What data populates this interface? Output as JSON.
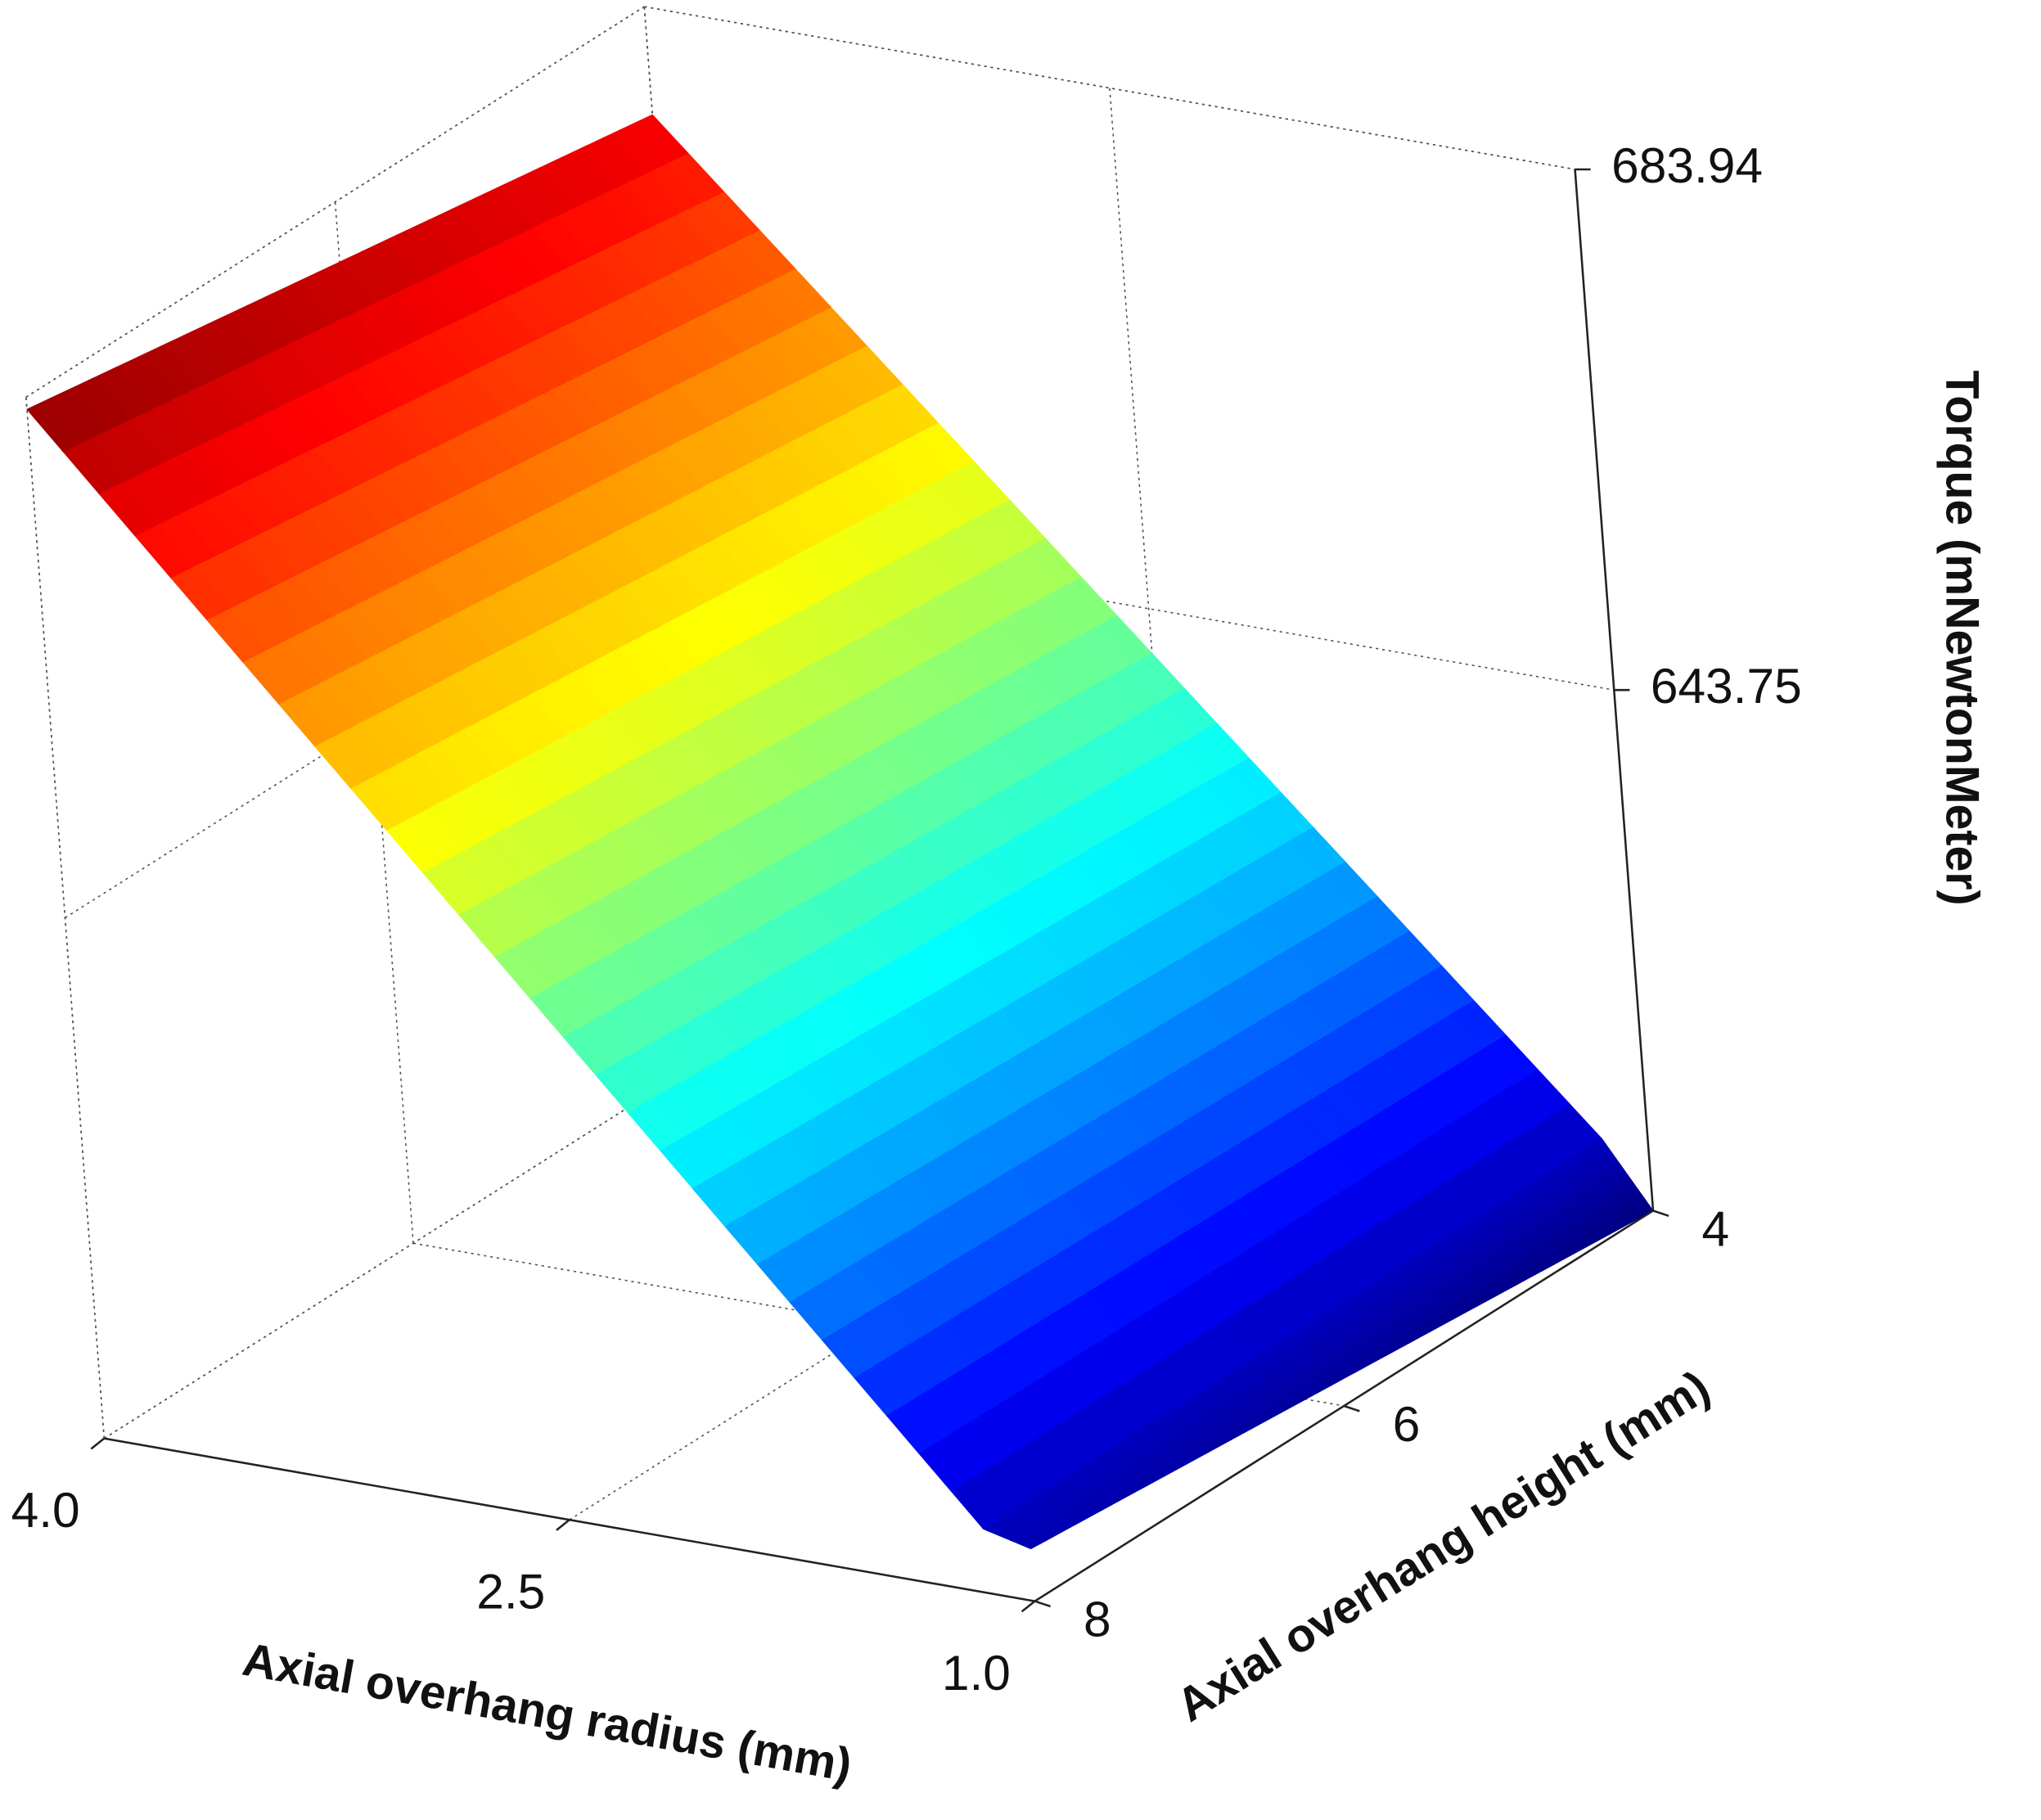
{
  "chart_data": {
    "type": "surface",
    "x_label": "Axial overhang radius (mm)",
    "y_label": "Axial overhang height (mm)",
    "z_label": "Torque (mNewtonMeter)",
    "x": [
      1.0,
      1.15,
      2.5,
      4.0
    ],
    "y": [
      4,
      6,
      8
    ],
    "values": [
      [
        603.56,
        608.5,
        640.3,
        675.6
      ],
      [
        605.6,
        608.5,
        642.0,
        679.3
      ],
      [
        607.6,
        608.5,
        643.8,
        683.0
      ]
    ],
    "xlim": [
      1.0,
      4.0
    ],
    "ylim": [
      4,
      8
    ],
    "zlim": [
      603.56,
      683.94
    ],
    "xticks": [
      {
        "value": 4.0,
        "label": "4.0"
      },
      2.5,
      {
        "value": 1.0,
        "label": "1.0"
      }
    ],
    "yticks": [
      4,
      6,
      8
    ],
    "zticks": [
      643.75,
      683.94
    ],
    "colormap": "jet",
    "grid": true
  }
}
